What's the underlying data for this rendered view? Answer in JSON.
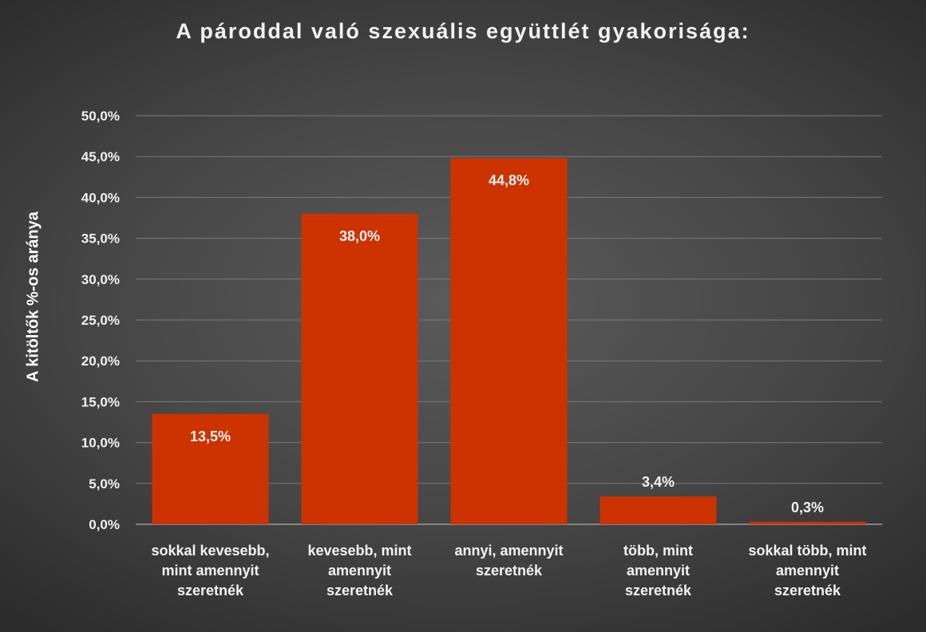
{
  "chart_data": {
    "type": "bar",
    "title": "A pároddal való szexuális együttlét gyakorisága:",
    "xlabel": "",
    "ylabel": "A kitöltők %-os aránya",
    "categories": [
      "sokkal kevesebb, mint amennyit szeretnék",
      "kevesebb, mint amennyit szeretnék",
      "annyi, amennyit szeretnék",
      "több, mint amennyit szeretnék",
      "sokkal több, mint amennyit szeretnék"
    ],
    "category_lines": [
      [
        "sokkal kevesebb,",
        "mint amennyit",
        "szeretnék"
      ],
      [
        "kevesebb, mint",
        "amennyit",
        "szeretnék"
      ],
      [
        "annyi, amennyit",
        "szeretnék"
      ],
      [
        "több, mint",
        "amennyit",
        "szeretnék"
      ],
      [
        "sokkal több, mint",
        "amennyit",
        "szeretnék"
      ]
    ],
    "values": [
      13.5,
      38.0,
      44.8,
      3.4,
      0.3
    ],
    "data_labels": [
      "13,5%",
      "38,0%",
      "44,8%",
      "3,4%",
      "0,3%"
    ],
    "ylim": [
      0,
      50
    ],
    "yticks": [
      0,
      5,
      10,
      15,
      20,
      25,
      30,
      35,
      40,
      45,
      50
    ],
    "ytick_labels": [
      "0,0%",
      "5,0%",
      "10,0%",
      "15,0%",
      "20,0%",
      "25,0%",
      "30,0%",
      "35,0%",
      "40,0%",
      "45,0%",
      "50,0%"
    ],
    "grid": true,
    "legend": "none",
    "colors": {
      "bar": "#cc3300",
      "gridline": "#7a7a7a",
      "axis": "#9a9a9a"
    }
  }
}
